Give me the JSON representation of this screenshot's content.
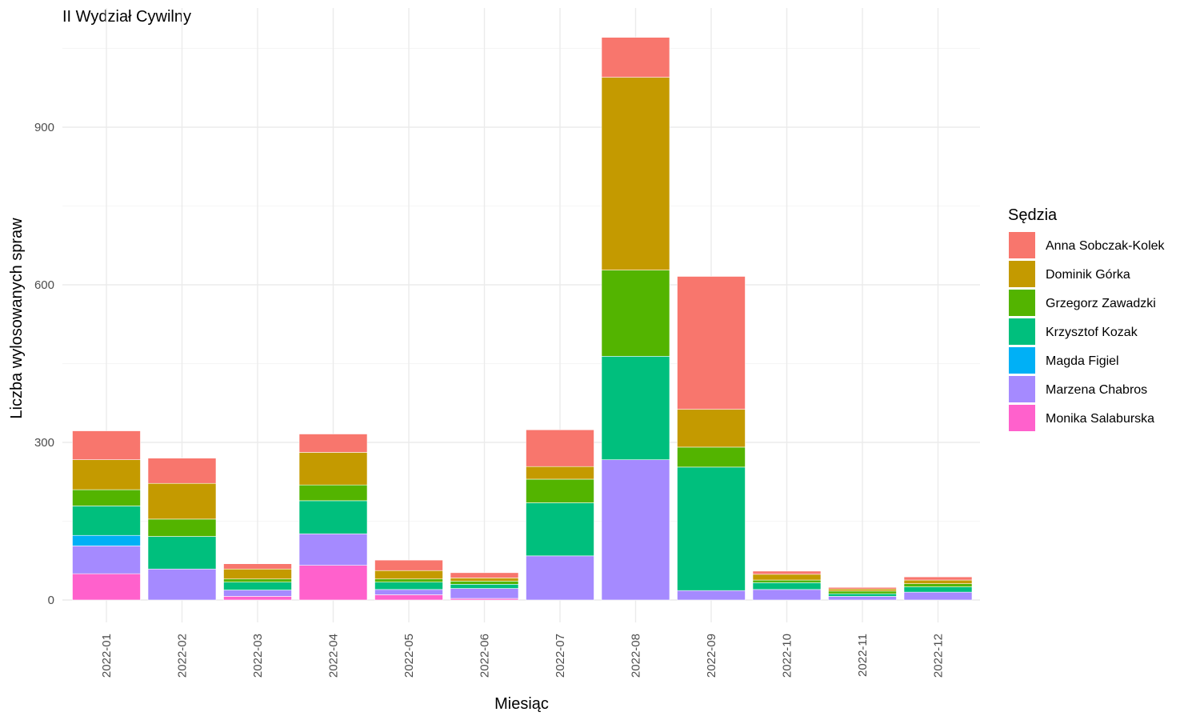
{
  "chart_data": {
    "type": "bar",
    "stacked": true,
    "title": "II Wydział Cywilny",
    "xlabel": "Miesiąc",
    "ylabel": "Liczba wylosowanych spraw",
    "legend_title": "Sędzia",
    "legend_position": "right",
    "grid": true,
    "ylim": [
      0,
      1070
    ],
    "yticks": [
      0,
      300,
      600,
      900
    ],
    "categories": [
      "2022-01",
      "2022-02",
      "2022-03",
      "2022-04",
      "2022-05",
      "2022-06",
      "2022-07",
      "2022-08",
      "2022-09",
      "2022-10",
      "2022-11",
      "2022-12"
    ],
    "series": [
      {
        "name": "Monika Salaburska",
        "color": "#FF61CC",
        "values": [
          50,
          0,
          7,
          66,
          10,
          3,
          0,
          0,
          0,
          0,
          0,
          0
        ]
      },
      {
        "name": "Marzena Chabros",
        "color": "#A58AFF",
        "values": [
          53,
          59,
          12,
          60,
          10,
          19,
          84,
          267,
          18,
          20,
          7,
          15
        ]
      },
      {
        "name": "Magda Figiel",
        "color": "#00B0F6",
        "values": [
          20,
          0,
          0,
          0,
          0,
          0,
          0,
          0,
          0,
          0,
          0,
          0
        ]
      },
      {
        "name": "Krzysztof Kozak",
        "color": "#00BF7D",
        "values": [
          56,
          62,
          15,
          63,
          14,
          8,
          101,
          197,
          235,
          13,
          5,
          10
        ]
      },
      {
        "name": "Grzegorz Zawadzki",
        "color": "#53B400",
        "values": [
          31,
          33,
          6,
          30,
          6,
          6,
          45,
          164,
          38,
          5,
          5,
          6
        ]
      },
      {
        "name": "Dominik Górka",
        "color": "#C49A00",
        "values": [
          57,
          68,
          19,
          62,
          16,
          6,
          24,
          367,
          72,
          11,
          4,
          7
        ]
      },
      {
        "name": "Anna Sobczak-Kolek",
        "color": "#F8766D",
        "values": [
          55,
          48,
          10,
          35,
          20,
          10,
          70,
          76,
          253,
          6,
          3,
          6
        ]
      }
    ],
    "legend_order": [
      "Anna Sobczak-Kolek",
      "Dominik Górka",
      "Grzegorz Zawadzki",
      "Krzysztof Kozak",
      "Magda Figiel",
      "Marzena Chabros",
      "Monika Salaburska"
    ]
  }
}
